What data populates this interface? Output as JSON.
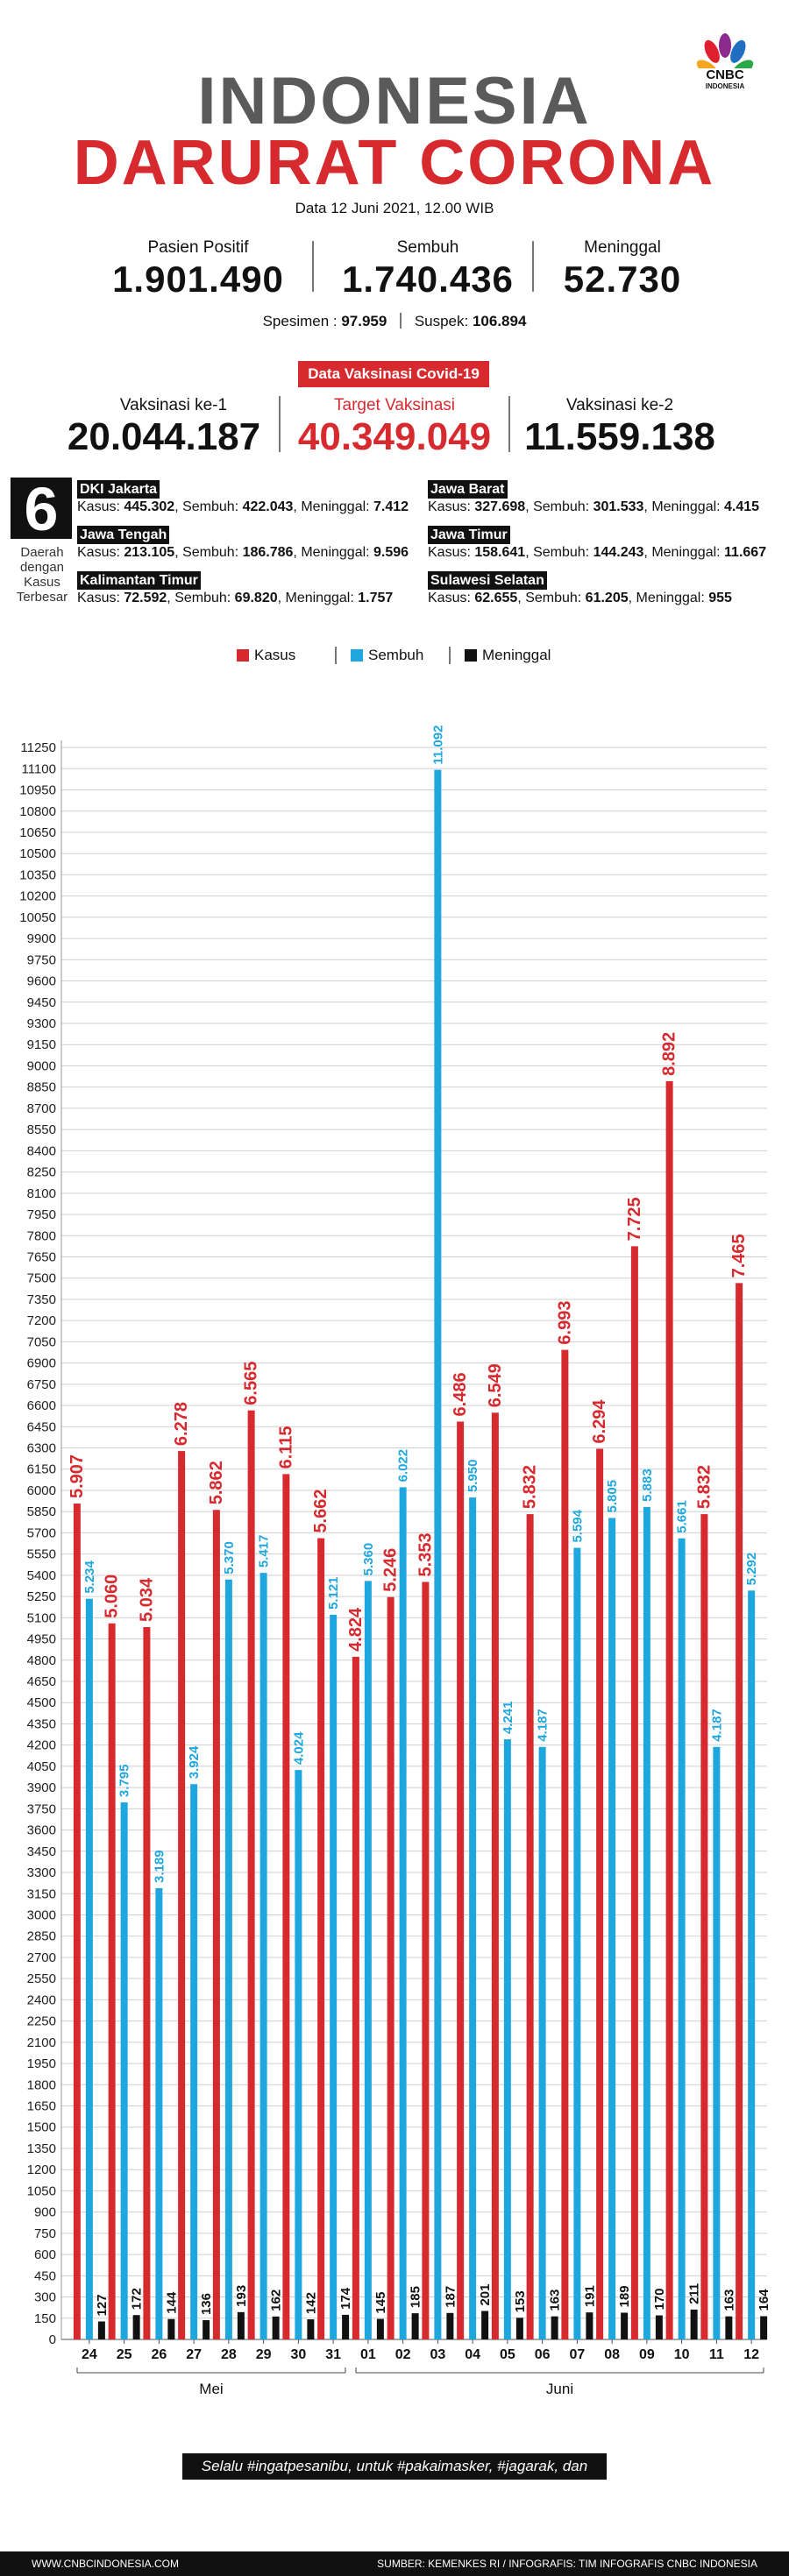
{
  "header": {
    "title_line1": "INDONESIA",
    "title_line2": "DARURAT CORONA",
    "logo_text": "CNBC",
    "logo_sub": "INDONESIA",
    "date": "Data 12 Juni 2021, 12.00 WIB"
  },
  "stats": {
    "positif_label": "Pasien Positif",
    "positif_value": "1.901.490",
    "sembuh_label": "Sembuh",
    "sembuh_value": "1.740.436",
    "meninggal_label": "Meninggal",
    "meninggal_value": "52.730",
    "spesimen_label": "Spesimen : ",
    "spesimen_value": "97.959",
    "suspek_label": "Suspek: ",
    "suspek_value": "106.894"
  },
  "vaksinasi": {
    "badge": "Data Vaksinasi Covid-19",
    "ke1_label": "Vaksinasi ke-1",
    "ke1_value": "20.044.187",
    "target_label": "Target Vaksinasi",
    "target_value": "40.349.049",
    "ke2_label": "Vaksinasi ke-2",
    "ke2_value": "11.559.138"
  },
  "daerah": {
    "count": "6",
    "caption_1": "Daerah",
    "caption_2": "dengan",
    "caption_3": "Kasus",
    "caption_4": "Terbesar",
    "provinces": [
      {
        "name": "DKI Jakarta",
        "kasus": "445.302",
        "sembuh": "422.043",
        "meninggal": "7.412"
      },
      {
        "name": "Jawa Barat",
        "kasus": "327.698",
        "sembuh": "301.533",
        "meninggal": "4.415"
      },
      {
        "name": "Jawa Tengah",
        "kasus": "213.105",
        "sembuh": "186.786",
        "meninggal": "9.596"
      },
      {
        "name": "Jawa Timur",
        "kasus": "158.641",
        "sembuh": "144.243",
        "meninggal": "11.667"
      },
      {
        "name": "Kalimantan Timur",
        "kasus": "72.592",
        "sembuh": "69.820",
        "meninggal": "1.757"
      },
      {
        "name": "Sulawesi Selatan",
        "kasus": "62.655",
        "sembuh": "61.205",
        "meninggal": "955"
      }
    ],
    "kasus_label": "Kasus: ",
    "sembuh_label": ", Sembuh: ",
    "meninggal_label": ", Meninggal: "
  },
  "legend": {
    "kasus": "Kasus",
    "sembuh": "Sembuh",
    "meninggal": "Meninggal"
  },
  "colors": {
    "kasus": "#d72a2f",
    "sembuh": "#1ea7df",
    "meninggal": "#111111",
    "title_gray": "#5a5a5a"
  },
  "chart_data": {
    "type": "bar",
    "categories": [
      "24",
      "25",
      "26",
      "27",
      "28",
      "29",
      "30",
      "31",
      "01",
      "02",
      "03",
      "04",
      "05",
      "06",
      "07",
      "08",
      "09",
      "10",
      "11",
      "12"
    ],
    "month_groups": [
      {
        "label": "Mei",
        "categories": [
          "24",
          "25",
          "26",
          "27",
          "28",
          "29",
          "30",
          "31"
        ]
      },
      {
        "label": "Juni",
        "categories": [
          "01",
          "02",
          "03",
          "04",
          "05",
          "06",
          "07",
          "08",
          "09",
          "10",
          "11",
          "12"
        ]
      }
    ],
    "series": [
      {
        "name": "Kasus",
        "color": "#d72a2f",
        "values": [
          5907,
          5060,
          5034,
          6278,
          5862,
          6565,
          6115,
          5662,
          4824,
          5246,
          5353,
          6486,
          6549,
          5832,
          6993,
          6294,
          7725,
          8892,
          5832,
          7465
        ],
        "labels": [
          "5.907",
          "5.060",
          "5.034",
          "6.278",
          "5.862",
          "6.565",
          "6.115",
          "5.662",
          "4.824",
          "5.246",
          "5.353",
          "6.486",
          "6.549",
          "5.832",
          "6.993",
          "6.294",
          "7.725",
          "8.892",
          "5.832",
          "7.465"
        ]
      },
      {
        "name": "Sembuh",
        "color": "#1ea7df",
        "values": [
          5234,
          3795,
          3189,
          3924,
          5370,
          5417,
          4024,
          5121,
          5360,
          6022,
          11092,
          5950,
          4241,
          4187,
          5594,
          5805,
          5883,
          5661,
          4187,
          5292
        ],
        "labels": [
          "5.234",
          "3.795",
          "3.189",
          "3.924",
          "5.370",
          "5.417",
          "4.024",
          "5.121",
          "5.360",
          "6.022",
          "11.092",
          "5.950",
          "4.241",
          "4.187",
          "5.594",
          "5.805",
          "5.883",
          "5.661",
          "4.187",
          "5.292"
        ]
      },
      {
        "name": "Meninggal",
        "color": "#111111",
        "values": [
          127,
          172,
          144,
          136,
          193,
          162,
          142,
          174,
          145,
          185,
          187,
          201,
          153,
          163,
          191,
          189,
          170,
          211,
          163,
          164
        ],
        "labels": [
          "127",
          "172",
          "144",
          "136",
          "193",
          "162",
          "142",
          "174",
          "145",
          "185",
          "187",
          "201",
          "153",
          "163",
          "191",
          "189",
          "170",
          "211",
          "163",
          "164"
        ]
      }
    ],
    "ylim": [
      0,
      11300
    ],
    "ytick_step": 150,
    "grid": true,
    "legend_position": "top"
  },
  "footer": {
    "message": "Selalu #ingatpesanibu, untuk #pakaimasker, #jagarak, dan #cucitanganpakaisabun",
    "site": "WWW.CNBCINDONESIA.COM",
    "source": "SUMBER: KEMENKES RI / INFOGRAFIS: TIM INFOGRAFIS CNBC INDONESIA"
  }
}
